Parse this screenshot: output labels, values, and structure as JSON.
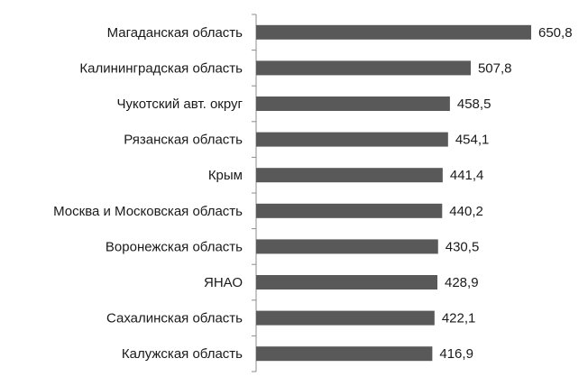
{
  "chart_data": {
    "type": "bar",
    "orientation": "horizontal",
    "categories": [
      "Магаданская область",
      "Калининградская область",
      "Чукотский авт. округ",
      "Рязанская область",
      "Крым",
      "Москва и Московская область",
      "Воронежская область",
      "ЯНАО",
      "Сахалинская область",
      "Калужская область"
    ],
    "values": [
      650.8,
      507.8,
      458.5,
      454.1,
      441.4,
      440.2,
      430.5,
      428.9,
      422.1,
      416.9
    ],
    "value_labels": [
      "650,8",
      "507,8",
      "458,5",
      "454,1",
      "441,4",
      "440,2",
      "430,5",
      "428,9",
      "422,1",
      "416,9"
    ],
    "xlim": [
      0,
      650.8
    ],
    "grid": false,
    "legend": "none",
    "bar_color": "#595959"
  }
}
